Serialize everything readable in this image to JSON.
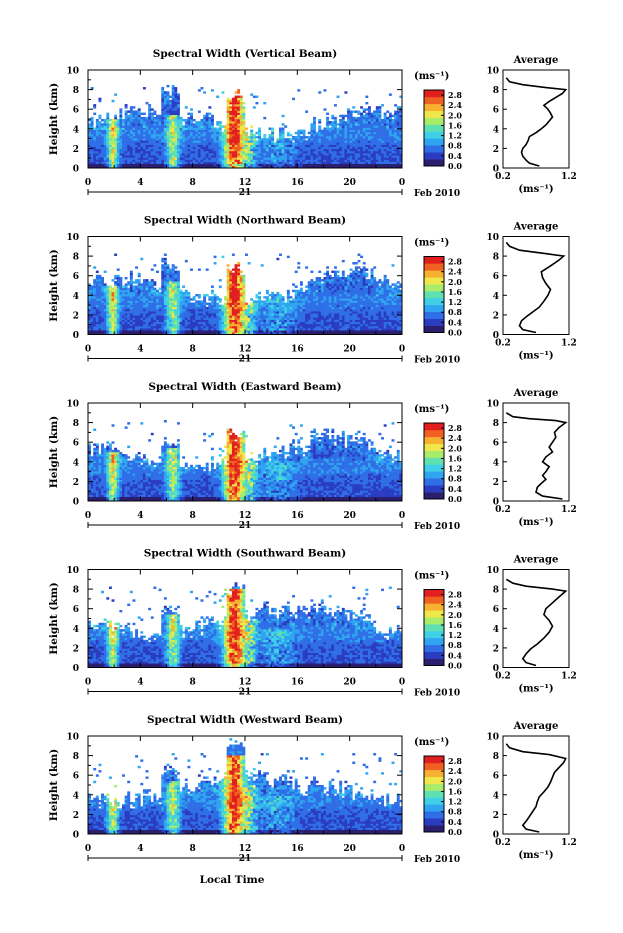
{
  "chart_data": {
    "type": "heatmap",
    "date_label": "Feb 2010",
    "day_label": "21",
    "xlabel": "Local Time",
    "ylabel": "Height (km)",
    "xlim": [
      0,
      24
    ],
    "ylim": [
      0,
      10
    ],
    "x_ticks": [
      "0",
      "4",
      "8",
      "12",
      "16",
      "20",
      "0"
    ],
    "y_ticks": [
      "0",
      "2",
      "4",
      "6",
      "8",
      "10"
    ],
    "colorbar": {
      "unit_label": "(ms⁻¹)",
      "range": [
        0,
        3.0
      ],
      "tick_labels": [
        "2.8",
        "2.4",
        "2.0",
        "1.6",
        "1.2",
        "0.8",
        "0.4",
        "0.0"
      ],
      "colors": [
        "#2b1e6e",
        "#2a3cc0",
        "#2f6ee6",
        "#2fa4f0",
        "#3fd0e8",
        "#5ee0b0",
        "#a8ec6a",
        "#f0e84a",
        "#f8b030",
        "#f06020",
        "#e21f1f"
      ]
    },
    "profile": {
      "title": "Average",
      "xlabel": "(ms⁻¹)",
      "x_ticks": [
        "0.2",
        "1.2"
      ],
      "xlim": [
        0.2,
        1.2
      ],
      "y_ticks": [
        "0",
        "2",
        "4",
        "6",
        "8",
        "10"
      ]
    },
    "panels": [
      {
        "title": "Spectral Width (Vertical Beam)",
        "profile_points": [
          [
            0.75,
            0.2
          ],
          [
            0.6,
            0.5
          ],
          [
            0.55,
            0.8
          ],
          [
            0.5,
            1.2
          ],
          [
            0.48,
            1.6
          ],
          [
            0.5,
            2.0
          ],
          [
            0.55,
            2.4
          ],
          [
            0.58,
            2.8
          ],
          [
            0.6,
            3.2
          ],
          [
            0.7,
            3.6
          ],
          [
            0.78,
            4.0
          ],
          [
            0.85,
            4.4
          ],
          [
            0.9,
            4.8
          ],
          [
            0.95,
            5.2
          ],
          [
            0.92,
            5.6
          ],
          [
            0.88,
            6.0
          ],
          [
            0.82,
            6.4
          ],
          [
            0.9,
            6.8
          ],
          [
            1.0,
            7.2
          ],
          [
            1.1,
            7.6
          ],
          [
            1.15,
            8.0
          ],
          [
            0.85,
            8.2
          ],
          [
            0.5,
            8.5
          ],
          [
            0.3,
            8.8
          ],
          [
            0.25,
            9.2
          ]
        ]
      },
      {
        "title": "Spectral Width (Northward Beam)",
        "profile_points": [
          [
            0.7,
            0.2
          ],
          [
            0.5,
            0.5
          ],
          [
            0.45,
            0.9
          ],
          [
            0.48,
            1.4
          ],
          [
            0.55,
            1.8
          ],
          [
            0.65,
            2.3
          ],
          [
            0.75,
            2.8
          ],
          [
            0.82,
            3.4
          ],
          [
            0.88,
            4.0
          ],
          [
            0.92,
            4.6
          ],
          [
            0.85,
            5.2
          ],
          [
            0.8,
            5.8
          ],
          [
            0.78,
            6.4
          ],
          [
            0.92,
            7.0
          ],
          [
            1.05,
            7.6
          ],
          [
            1.12,
            8.0
          ],
          [
            0.8,
            8.3
          ],
          [
            0.45,
            8.6
          ],
          [
            0.3,
            9.0
          ],
          [
            0.25,
            9.4
          ]
        ]
      },
      {
        "title": "Spectral Width (Eastward Beam)",
        "profile_points": [
          [
            1.1,
            0.2
          ],
          [
            0.8,
            0.5
          ],
          [
            0.7,
            0.9
          ],
          [
            0.72,
            1.4
          ],
          [
            0.78,
            1.8
          ],
          [
            0.85,
            2.2
          ],
          [
            0.8,
            2.6
          ],
          [
            0.85,
            3.0
          ],
          [
            0.9,
            3.5
          ],
          [
            0.8,
            4.0
          ],
          [
            0.85,
            4.5
          ],
          [
            0.95,
            5.0
          ],
          [
            0.9,
            5.5
          ],
          [
            0.95,
            6.0
          ],
          [
            1.0,
            6.5
          ],
          [
            0.98,
            7.0
          ],
          [
            1.05,
            7.5
          ],
          [
            1.15,
            8.0
          ],
          [
            1.0,
            8.2
          ],
          [
            0.6,
            8.4
          ],
          [
            0.35,
            8.6
          ],
          [
            0.25,
            9.0
          ]
        ]
      },
      {
        "title": "Spectral Width (Southward Beam)",
        "profile_points": [
          [
            0.7,
            0.2
          ],
          [
            0.55,
            0.5
          ],
          [
            0.5,
            0.9
          ],
          [
            0.55,
            1.4
          ],
          [
            0.62,
            1.9
          ],
          [
            0.72,
            2.4
          ],
          [
            0.82,
            3.0
          ],
          [
            0.9,
            3.6
          ],
          [
            0.95,
            4.2
          ],
          [
            0.9,
            4.8
          ],
          [
            0.82,
            5.4
          ],
          [
            0.85,
            6.0
          ],
          [
            0.95,
            6.6
          ],
          [
            1.05,
            7.2
          ],
          [
            1.15,
            7.8
          ],
          [
            0.95,
            8.0
          ],
          [
            0.55,
            8.3
          ],
          [
            0.35,
            8.6
          ],
          [
            0.25,
            9.0
          ]
        ]
      },
      {
        "title": "Spectral Width (Westward Beam)",
        "profile_points": [
          [
            0.75,
            0.2
          ],
          [
            0.55,
            0.5
          ],
          [
            0.5,
            0.9
          ],
          [
            0.55,
            1.3
          ],
          [
            0.6,
            1.8
          ],
          [
            0.65,
            2.3
          ],
          [
            0.7,
            2.8
          ],
          [
            0.72,
            3.3
          ],
          [
            0.75,
            3.8
          ],
          [
            0.82,
            4.3
          ],
          [
            0.88,
            4.8
          ],
          [
            0.92,
            5.3
          ],
          [
            0.95,
            5.8
          ],
          [
            0.98,
            6.3
          ],
          [
            1.05,
            6.8
          ],
          [
            1.12,
            7.3
          ],
          [
            1.15,
            7.7
          ],
          [
            0.9,
            8.1
          ],
          [
            0.5,
            8.4
          ],
          [
            0.3,
            8.8
          ],
          [
            0.25,
            9.2
          ]
        ]
      }
    ]
  }
}
